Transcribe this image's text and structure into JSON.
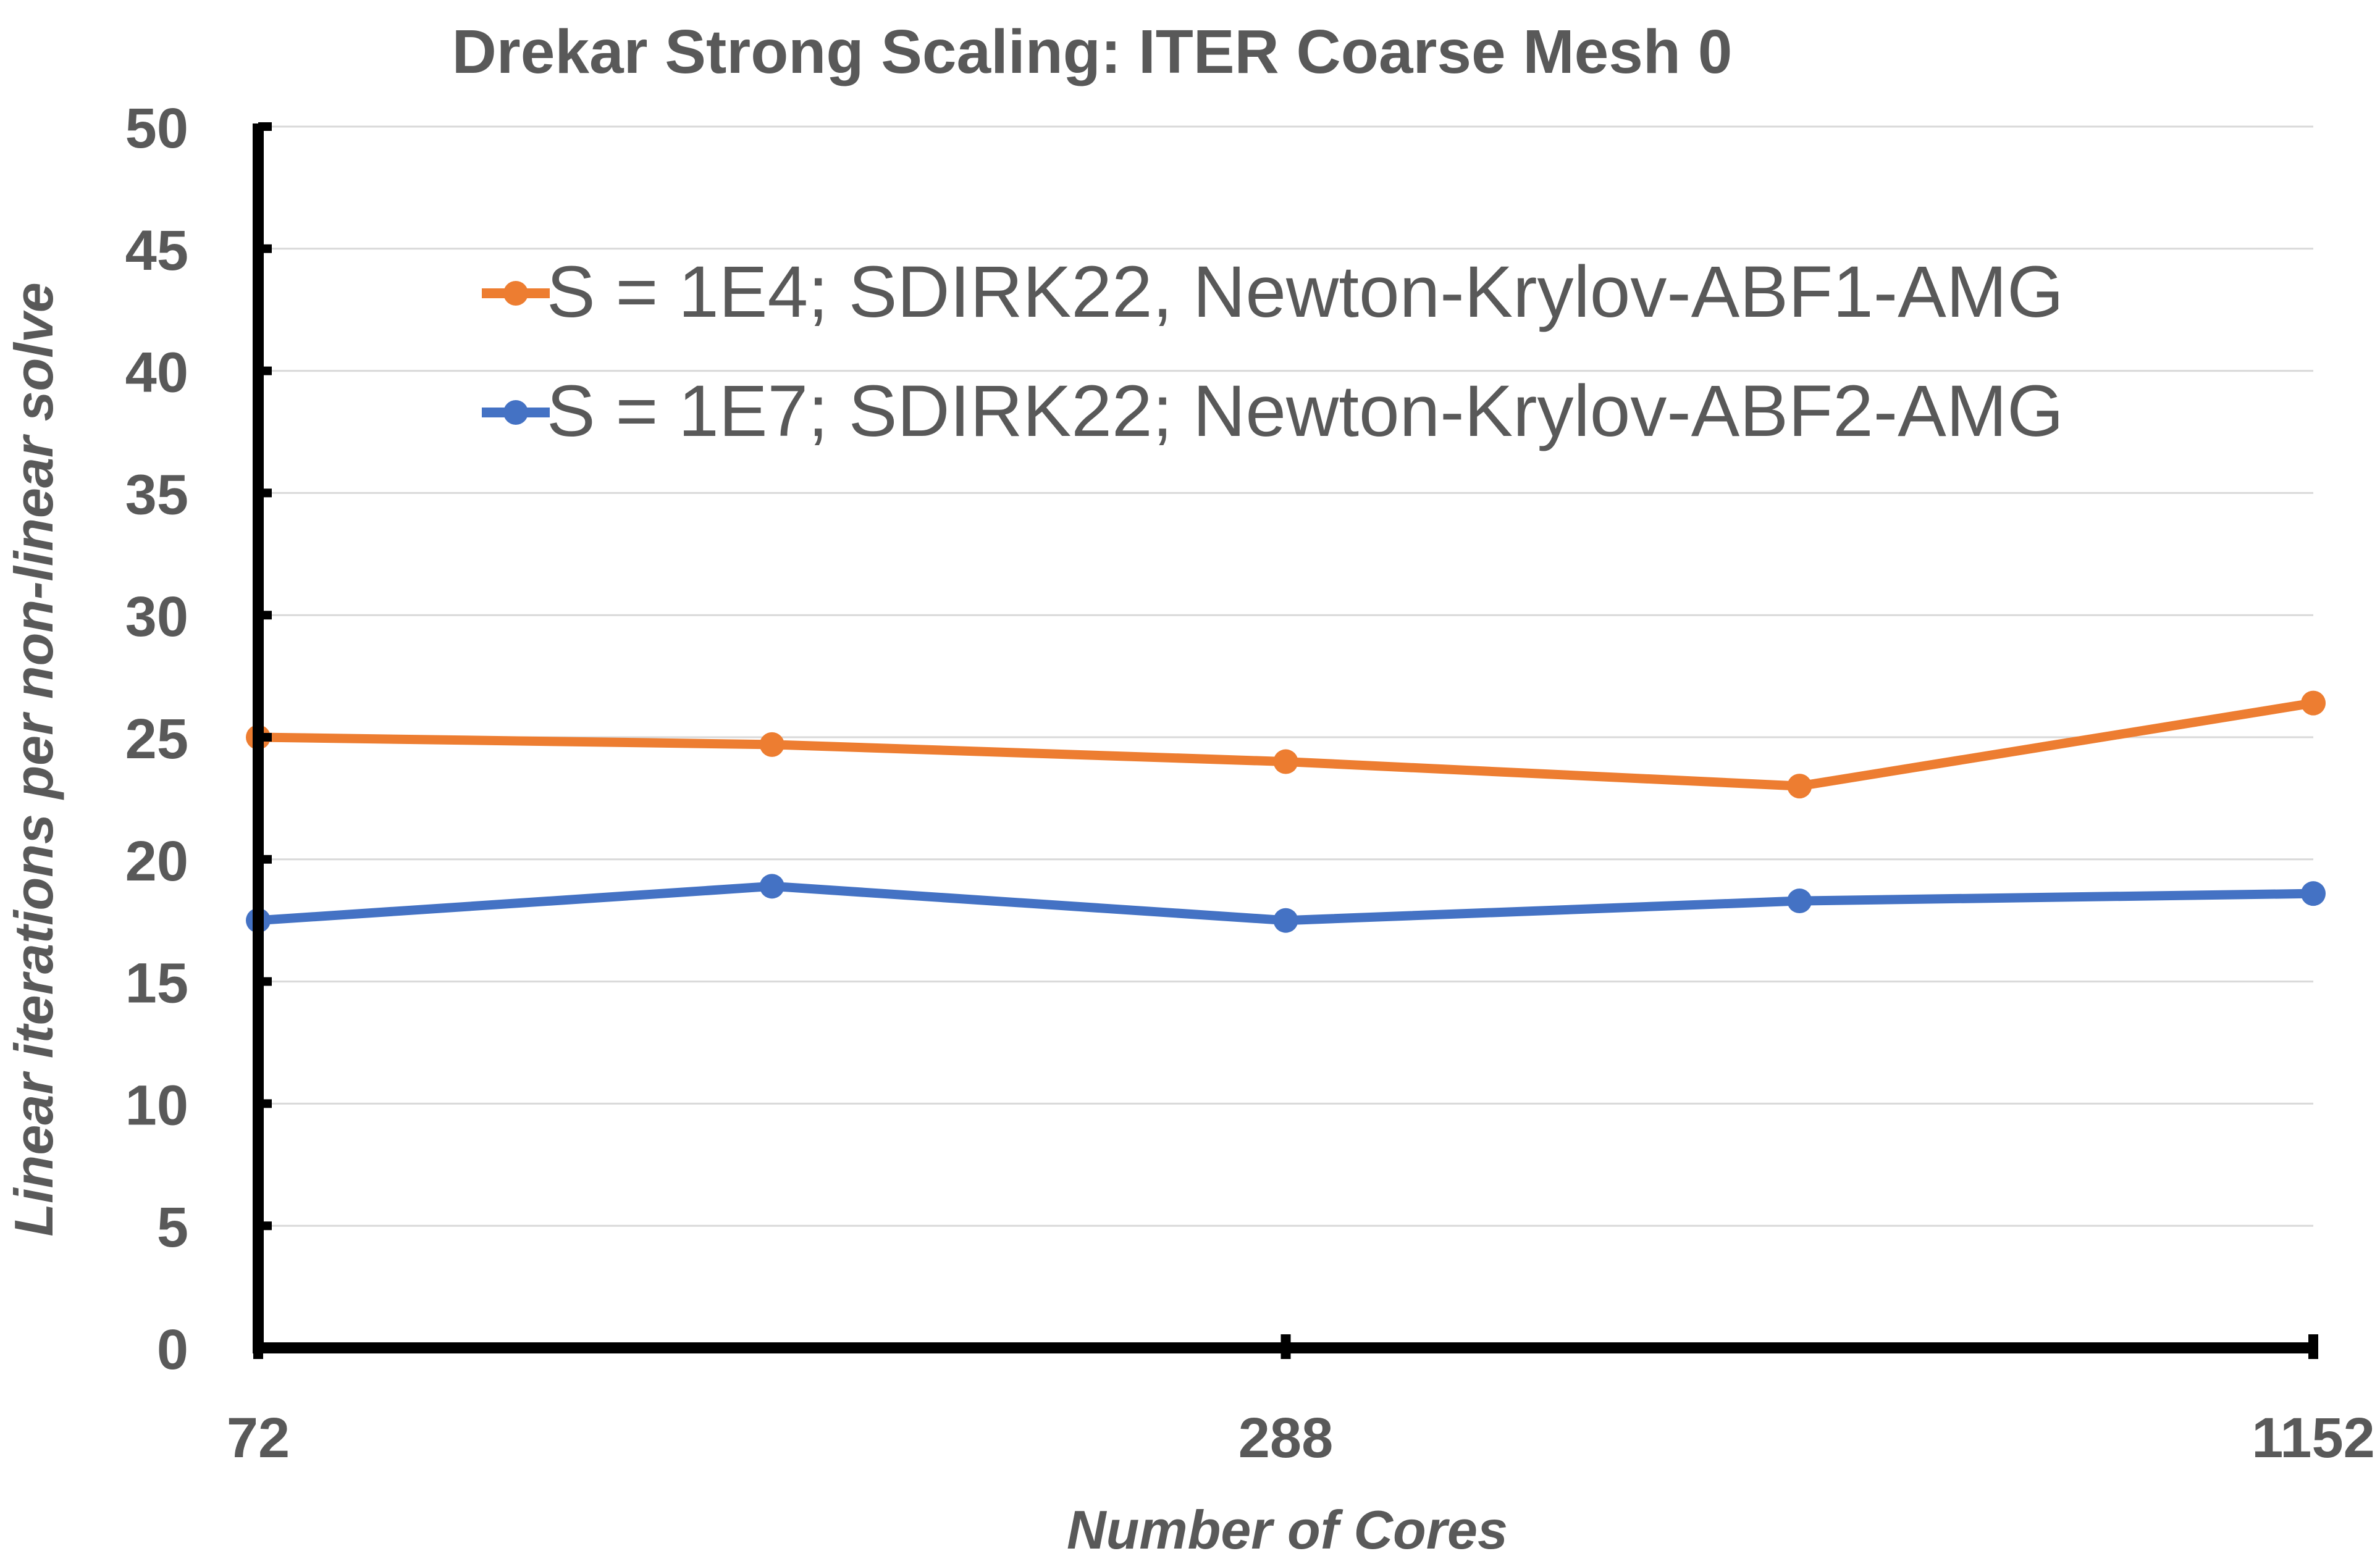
{
  "chart_data": {
    "type": "line",
    "title": "Drekar Strong Scaling:  ITER Coarse Mesh 0",
    "xlabel": "Number of Cores",
    "ylabel": "Linear iterations per non-linear solve",
    "x_scale": "log2",
    "x_tick_labels": [
      "72",
      "288",
      "1152"
    ],
    "x": [
      72,
      144,
      288,
      576,
      1152
    ],
    "ylim": [
      0,
      50
    ],
    "y_ticks": [
      "0",
      "5",
      "10",
      "15",
      "20",
      "25",
      "30",
      "35",
      "40",
      "45",
      "50"
    ],
    "grid": "horizontal",
    "legend_position": "top-center",
    "series": [
      {
        "name": "S = 1E4; SDIRK22, Newton-Krylov-ABF1-AMG",
        "color": "#ED7D31",
        "values": [
          25.0,
          24.7,
          24.0,
          23.0,
          26.4
        ]
      },
      {
        "name": "S = 1E7; SDIRK22; Newton-Krylov-ABF2-AMG",
        "color": "#4472C4",
        "values": [
          17.5,
          18.9,
          17.5,
          18.3,
          18.6
        ]
      }
    ]
  }
}
